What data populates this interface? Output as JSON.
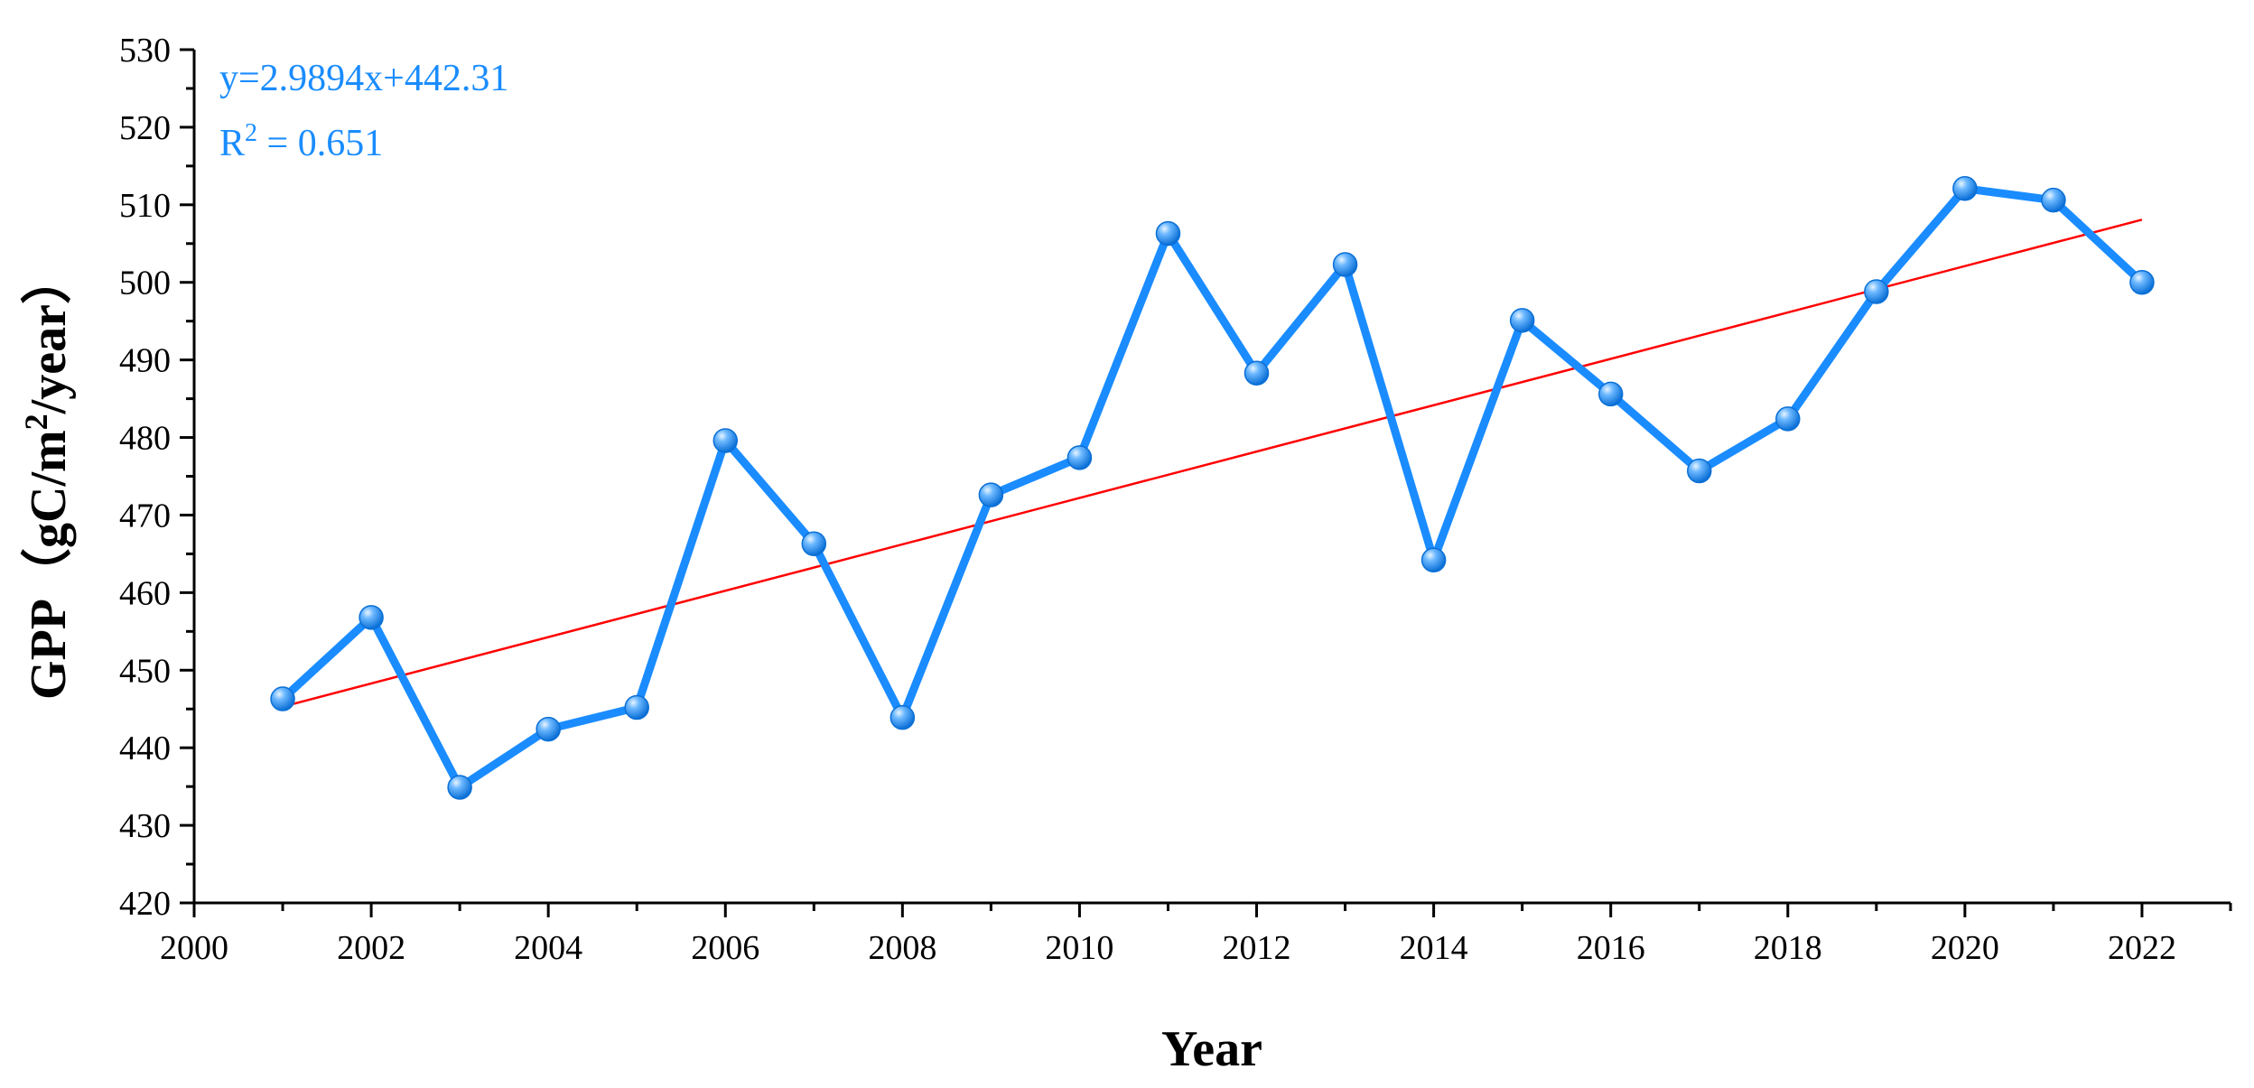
{
  "chart_data": {
    "type": "line",
    "title": "",
    "xlabel": "Year",
    "ylabel_main": "GPP（gC/m",
    "ylabel_sup": "2",
    "ylabel_tail": "/year）",
    "xlim": [
      2000,
      2023
    ],
    "ylim": [
      420,
      530
    ],
    "x_ticks": [
      2000,
      2002,
      2004,
      2006,
      2008,
      2010,
      2012,
      2014,
      2016,
      2018,
      2020,
      2022
    ],
    "y_ticks": [
      420,
      430,
      440,
      450,
      460,
      470,
      480,
      490,
      500,
      510,
      520,
      530
    ],
    "grid": false,
    "series": [
      {
        "x": [
          2001,
          2002,
          2003,
          2004,
          2005,
          2006,
          2007,
          2008,
          2009,
          2010,
          2011,
          2012,
          2013,
          2014,
          2015,
          2016,
          2017,
          2018,
          2019,
          2020,
          2021,
          2022
        ],
        "values": [
          446.3,
          456.8,
          434.9,
          442.4,
          445.2,
          479.6,
          466.3,
          443.9,
          472.6,
          477.4,
          506.3,
          488.3,
          502.3,
          464.2,
          495.1,
          485.6,
          475.7,
          482.4,
          498.8,
          512.1,
          510.6,
          500.0
        ],
        "color": "#1a8cff"
      }
    ],
    "trendline": {
      "slope": 2.9894,
      "intercept": 442.31,
      "x_index_range": [
        1,
        22
      ],
      "color": "#ff0000",
      "equation_label": "y=2.9894x+442.31",
      "r2_prefix": "R",
      "r2_sup": "2",
      "r2_suffix": " = 0.651",
      "label_color": "#1a8cff"
    }
  }
}
